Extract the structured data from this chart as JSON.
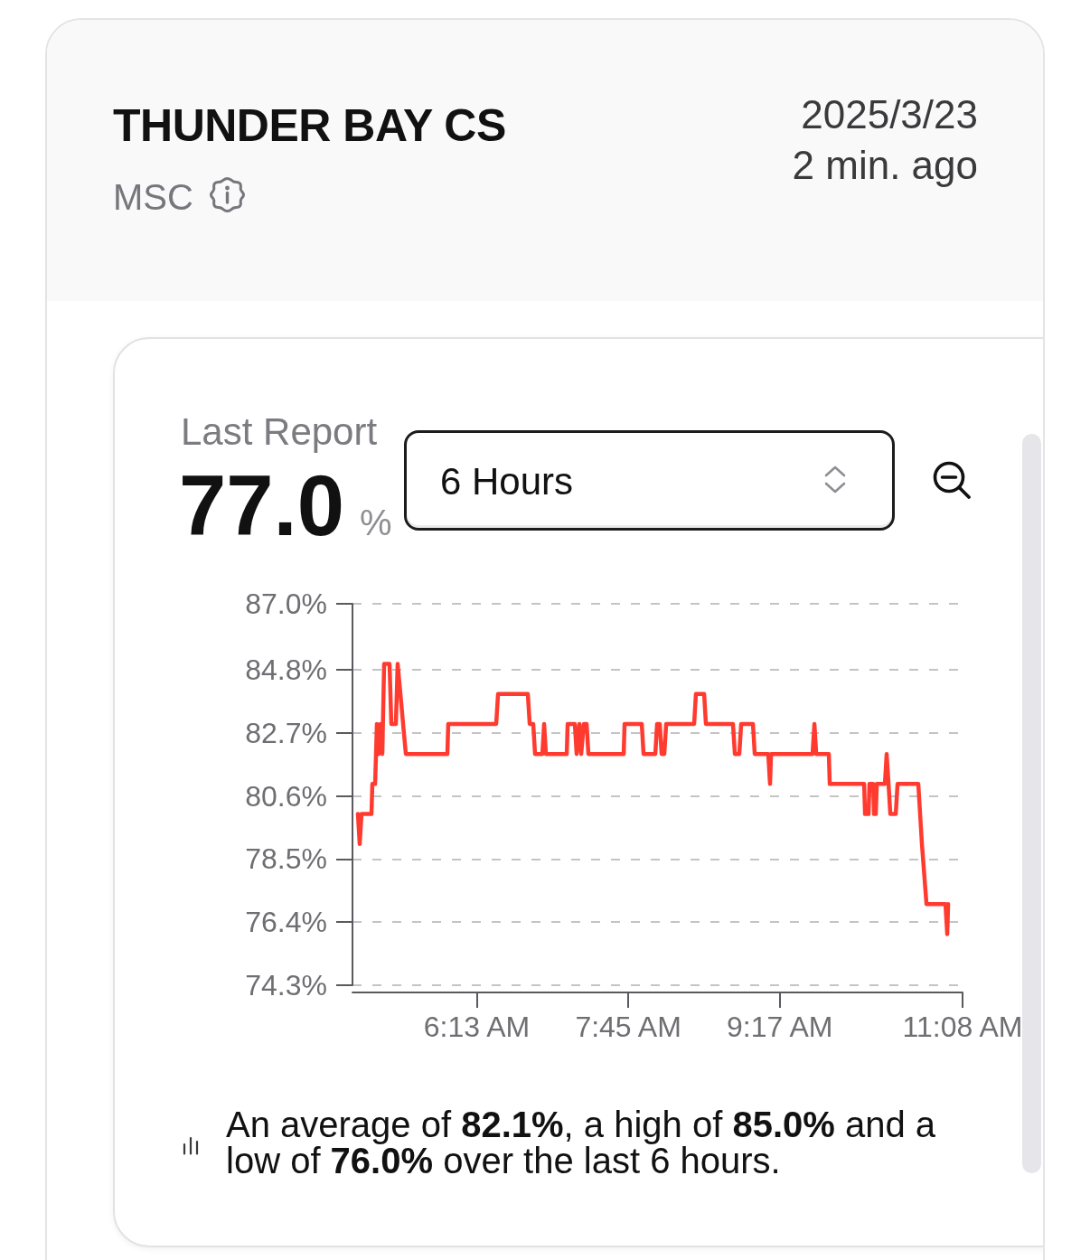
{
  "chart_data": {
    "type": "line",
    "title": "THUNDER BAY CS",
    "subtitle": "MSC",
    "annotations": [
      "2025/3/23",
      "2 min. ago",
      "Last Report",
      "77.0",
      "%",
      "6 Hours",
      "An average of 82.1%, a high of 85.0% and a low of 76.0% over the last 6 hours."
    ],
    "x": [
      5.015,
      5.033,
      5.051,
      5.152,
      5.161,
      5.189,
      5.207,
      5.225,
      5.244,
      5.262,
      5.28,
      5.335,
      5.353,
      5.399,
      5.417,
      5.445,
      5.472,
      5.5,
      5.92,
      5.929,
      6.414,
      6.433,
      6.734,
      6.753,
      6.789,
      6.807,
      6.881,
      6.899,
      6.917,
      7.128,
      7.137,
      7.21,
      7.228,
      7.256,
      7.274,
      7.301,
      7.329,
      7.347,
      7.704,
      7.713,
      7.887,
      7.905,
      8.024,
      8.042,
      8.069,
      8.088,
      8.115,
      8.134,
      8.417,
      8.435,
      8.518,
      8.536,
      8.81,
      8.829,
      8.874,
      8.893,
      9.012,
      9.03,
      9.167,
      9.185,
      9.195,
      9.615,
      9.634,
      9.652,
      9.78,
      9.789,
      10.137,
      10.146,
      10.182,
      10.191,
      10.228,
      10.237,
      10.255,
      10.265,
      10.347,
      10.365,
      10.384,
      10.402,
      10.457,
      10.475,
      10.685,
      10.722,
      10.768,
      10.96,
      10.978,
      10.987
    ],
    "values": [
      80,
      79,
      80,
      80,
      81,
      81,
      83,
      82,
      83,
      82,
      85,
      85,
      83,
      83,
      85,
      84,
      83,
      82,
      82,
      83,
      83,
      84,
      84,
      83,
      83,
      82,
      82,
      83,
      82,
      82,
      83,
      83,
      82,
      83,
      82,
      83,
      83,
      82,
      82,
      83,
      83,
      82,
      82,
      83,
      83,
      82,
      82,
      83,
      83,
      84,
      84,
      83,
      83,
      82,
      82,
      83,
      83,
      82,
      82,
      81,
      82,
      82,
      83,
      82,
      82,
      81,
      81,
      80,
      80,
      81,
      81,
      80,
      80,
      81,
      81,
      82,
      81,
      80,
      80,
      81,
      81,
      79,
      77,
      77,
      76,
      77
    ],
    "color": "#ff3b30",
    "xlim": [
      4.96,
      11.133
    ],
    "xticks": [
      {
        "value": 6.217,
        "label": "6:13 AM"
      },
      {
        "value": 7.75,
        "label": "7:45 AM"
      },
      {
        "value": 9.283,
        "label": "9:17 AM"
      },
      {
        "value": 11.133,
        "label": "11:08 AM"
      }
    ],
    "ylim": [
      74.3,
      87.0
    ],
    "yticks": [
      {
        "value": 74.3,
        "label": "74.3%"
      },
      {
        "value": 76.4,
        "label": "76.4%"
      },
      {
        "value": 78.5,
        "label": "78.5%"
      },
      {
        "value": 80.6,
        "label": "80.6%"
      },
      {
        "value": 82.7,
        "label": "82.7%"
      },
      {
        "value": 84.8,
        "label": "84.8%"
      },
      {
        "value": 87.0,
        "label": "87.0%"
      }
    ],
    "grid": "y",
    "marker": "none",
    "line_style": "solid"
  }
}
